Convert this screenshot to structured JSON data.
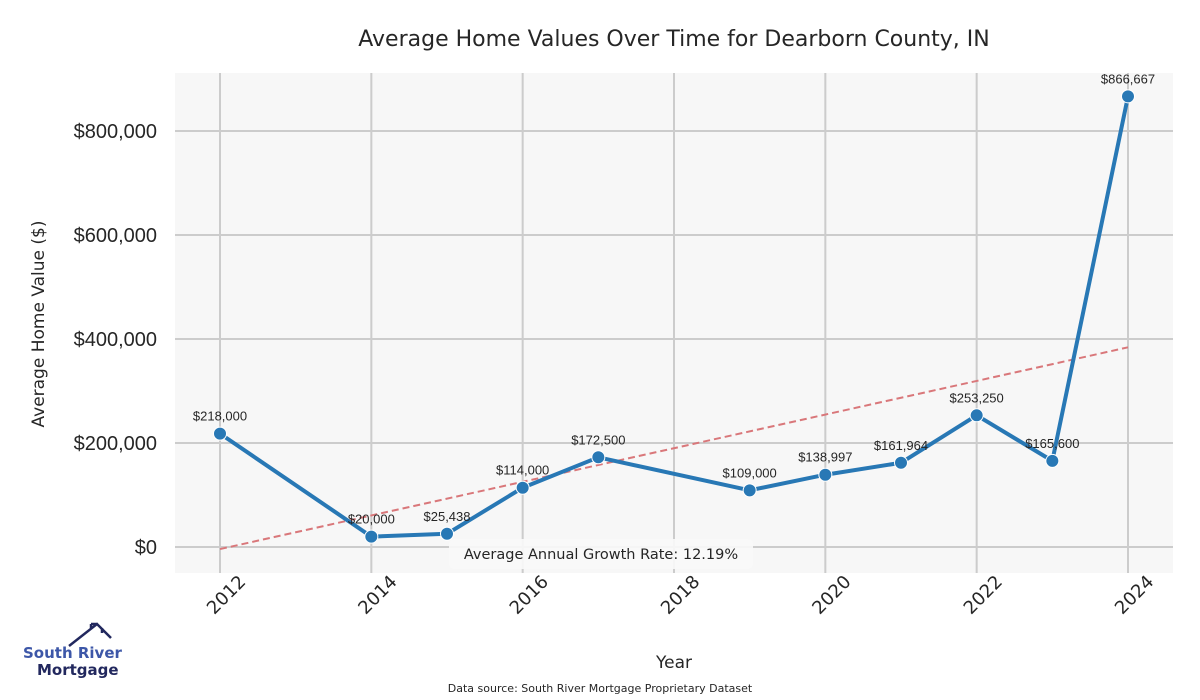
{
  "chart_data": {
    "type": "line",
    "title": "Average Home Values Over Time for Dearborn County, IN",
    "xlabel": "Year",
    "ylabel": "Average Home Value ($)",
    "xlim": [
      2011.4,
      2024.6
    ],
    "ylim": [
      -55000,
      910000
    ],
    "grid": true,
    "x_ticks": [
      2012,
      2014,
      2016,
      2018,
      2020,
      2022,
      2024
    ],
    "x_tick_labels": [
      "2012",
      "2014",
      "2016",
      "2018",
      "2020",
      "2022",
      "2024"
    ],
    "y_ticks": [
      0,
      200000,
      400000,
      600000,
      800000
    ],
    "y_tick_labels": [
      "$0",
      "$200,000",
      "$400,000",
      "$600,000",
      "$800,000"
    ],
    "series": [
      {
        "name": "Average Home Value",
        "color": "#2878b5",
        "x": [
          2012,
          2014,
          2015,
          2016,
          2017,
          2019,
          2020,
          2021,
          2022,
          2023,
          2024
        ],
        "values": [
          218000,
          20000,
          25438,
          114000,
          172500,
          109000,
          138997,
          161964,
          253250,
          165600,
          866667
        ],
        "labels": [
          "$218,000",
          "$20,000",
          "$25,438",
          "$114,000",
          "$172,500",
          "$109,000",
          "$138,997",
          "$161,964",
          "$253,250",
          "$165,600",
          "$866,667"
        ]
      }
    ],
    "trendline": {
      "name": "Trend",
      "color": "#d9777a",
      "style": "dashed",
      "x": [
        2012,
        2024
      ],
      "values": [
        -4000,
        384000
      ]
    },
    "annotation": "Average Annual Growth Rate: 12.19%",
    "source": "Data source: South River Mortgage Proprietary Dataset"
  },
  "logo": {
    "line1": "South River",
    "line2": "Mortgage",
    "color_primary": "#3d57a8",
    "color_dark": "#22285e"
  },
  "colors": {
    "plot_background": "#f7f7f7",
    "grid": "#cccccc"
  }
}
